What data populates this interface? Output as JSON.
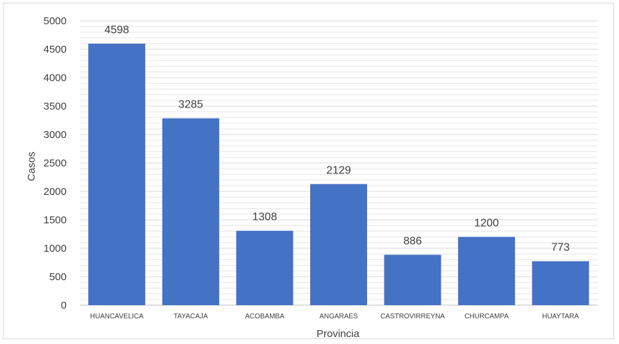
{
  "chart_data": {
    "type": "bar",
    "categories": [
      "HUANCAVELICA",
      "TAYACAJA",
      "ACOBAMBA",
      "ANGARAES",
      "CASTROVIRREYNA",
      "CHURCAMPA",
      "HUAYTARA"
    ],
    "values": [
      4598,
      3285,
      1308,
      2129,
      886,
      1200,
      773
    ],
    "data_labels": [
      "4598",
      "3285",
      "1308",
      "2129",
      "886",
      "1200",
      "773"
    ],
    "xlabel": "Provincia",
    "ylabel": "Casos",
    "ylim": [
      0,
      5000
    ],
    "yticks": [
      "0",
      "500",
      "1000",
      "1500",
      "2000",
      "2500",
      "3000",
      "3500",
      "4000",
      "4500",
      "5000"
    ],
    "grid": true,
    "legend": "none",
    "bar_color": "#4472c4",
    "gridline_color": "#e6e6e6"
  }
}
